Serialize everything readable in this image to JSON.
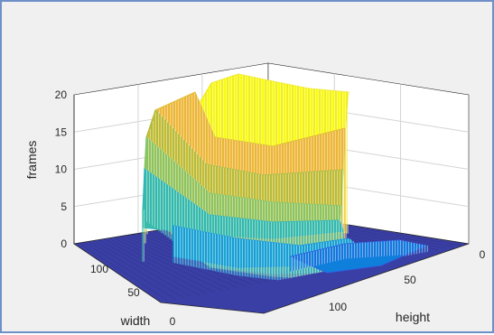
{
  "chart_data": {
    "type": "surface",
    "title": "",
    "zlabel": "frames",
    "xlabel": "width",
    "ylabel": "height",
    "zlim": [
      0,
      20
    ],
    "z_ticks": [
      "0",
      "5",
      "10",
      "15",
      "20"
    ],
    "width_ticks": [
      "100",
      "50",
      "0"
    ],
    "height_ticks": [
      "0",
      "50",
      "100"
    ],
    "grid": true,
    "colormap": "parula",
    "surface_levels": [
      {
        "frames": 19,
        "colors": [
          "#f9fb0e",
          "#eee52a"
        ]
      },
      {
        "frames": 16,
        "colors": [
          "#f1b63b",
          "#dfbb2f"
        ]
      },
      {
        "frames": 13,
        "colors": [
          "#c6bc32",
          "#a5be45"
        ]
      },
      {
        "frames": 10,
        "colors": [
          "#97c358",
          "#7fc56c"
        ]
      },
      {
        "frames": 7,
        "colors": [
          "#3bbca8",
          "#2cb4bc"
        ]
      },
      {
        "frames": 5,
        "colors": [
          "#1aa5d4",
          "#1697d8"
        ]
      },
      {
        "frames": 2,
        "colors": [
          "#0f7fdc",
          "#2c64e2"
        ]
      },
      {
        "frames": 0,
        "colors": [
          "#3a3fa6"
        ]
      }
    ]
  }
}
